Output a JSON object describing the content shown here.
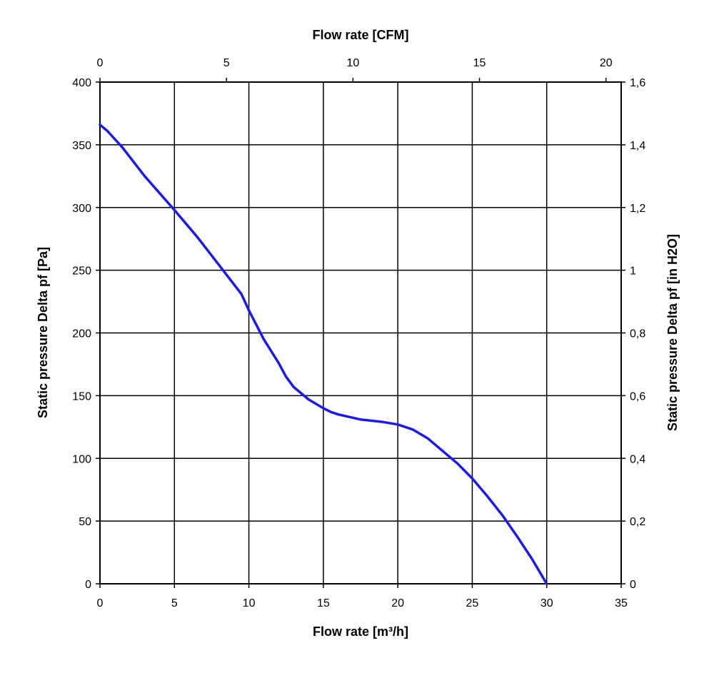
{
  "chart_data": {
    "type": "line",
    "xlabel": "Flow rate [m³/h]",
    "x2label": "Flow rate [CFM]",
    "ylabel": "Static pressure Delta pf [Pa]",
    "y2label": "Static pressure Delta pf [in H2O]",
    "xlim": [
      0,
      35
    ],
    "x2lim": [
      0,
      20.6
    ],
    "ylim": [
      0,
      400
    ],
    "y2lim": [
      0,
      1.6
    ],
    "x_ticks": [
      "0",
      "5",
      "10",
      "15",
      "20",
      "25",
      "30",
      "35"
    ],
    "x_tick_values": [
      0,
      5,
      10,
      15,
      20,
      25,
      30,
      35
    ],
    "x2_ticks": [
      "0",
      "5",
      "10",
      "15",
      "20"
    ],
    "x2_tick_values": [
      0,
      5,
      10,
      15,
      20
    ],
    "y_ticks": [
      "0",
      "50",
      "100",
      "150",
      "200",
      "250",
      "300",
      "350",
      "400"
    ],
    "y_tick_values": [
      0,
      50,
      100,
      150,
      200,
      250,
      300,
      350,
      400
    ],
    "y2_ticks": [
      "0",
      "0,2",
      "0,4",
      "0,6",
      "0,8",
      "1",
      "1,2",
      "1,4",
      "1,6"
    ],
    "y2_tick_values": [
      0,
      0.2,
      0.4,
      0.6,
      0.8,
      1.0,
      1.2,
      1.4,
      1.6
    ],
    "grid": true,
    "series": [
      {
        "color": "#1a1aee",
        "x": [
          0,
          0.5,
          1.5,
          3,
          5,
          6.5,
          8,
          9.5,
          10,
          11,
          12,
          12.5,
          13,
          13.5,
          14,
          15,
          15.5,
          16,
          17.5,
          19,
          20,
          21,
          22,
          23,
          24,
          25,
          26,
          27,
          28,
          29,
          30
        ],
        "y": [
          366,
          361,
          348,
          325,
          298,
          277,
          254,
          231,
          218,
          195,
          176,
          165,
          157,
          152,
          147,
          140,
          137,
          135,
          131,
          129,
          127,
          123,
          116,
          106,
          96,
          84,
          70,
          55,
          38,
          20,
          0
        ]
      }
    ]
  }
}
